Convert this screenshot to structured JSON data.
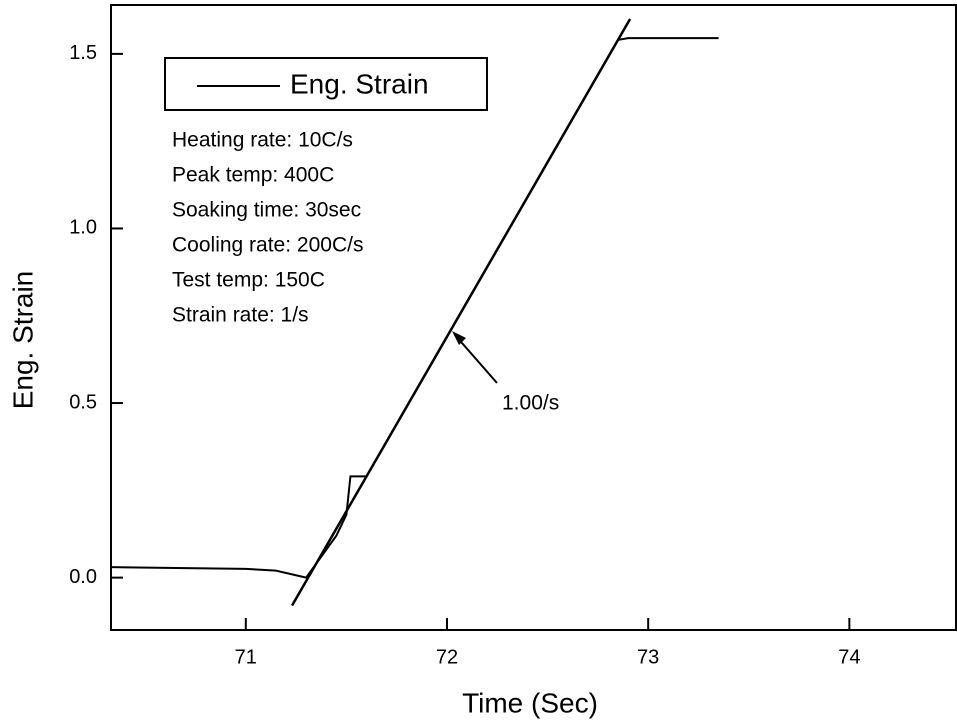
{
  "chart_data": {
    "type": "line",
    "xlabel": "Time (Sec)",
    "ylabel": "Eng. Strain",
    "series": [
      {
        "name": "Eng. Strain",
        "color": "#000000",
        "x": [
          70.33,
          71.0,
          71.15,
          71.3,
          71.45,
          71.5,
          71.52,
          71.6,
          72.85,
          72.9,
          73.35
        ],
        "values": [
          0.03,
          0.025,
          0.02,
          0.0,
          0.12,
          0.18,
          0.29,
          0.29,
          1.54,
          1.545,
          1.545
        ]
      }
    ],
    "fit_line": {
      "color": "#000000",
      "x": [
        71.23,
        72.91
      ],
      "values": [
        -0.08,
        1.6
      ]
    },
    "annotations": [
      "Heating rate: 10C/s",
      "Peak temp: 400C",
      "Soaking time: 30sec",
      "Cooling rate: 200C/s",
      "Test temp: 150C",
      "Strain rate: 1/s"
    ],
    "fit_label": "1.00/s",
    "legend": "upper left",
    "xlim": [
      70.33,
      74.53
    ],
    "ylim": [
      -0.15,
      1.64
    ],
    "xticks": [
      71,
      72,
      73,
      74
    ],
    "yticks": [
      {
        "value": 0,
        "label": "0.0"
      },
      0.5,
      {
        "value": 1,
        "label": "1.0"
      },
      1.5
    ]
  }
}
